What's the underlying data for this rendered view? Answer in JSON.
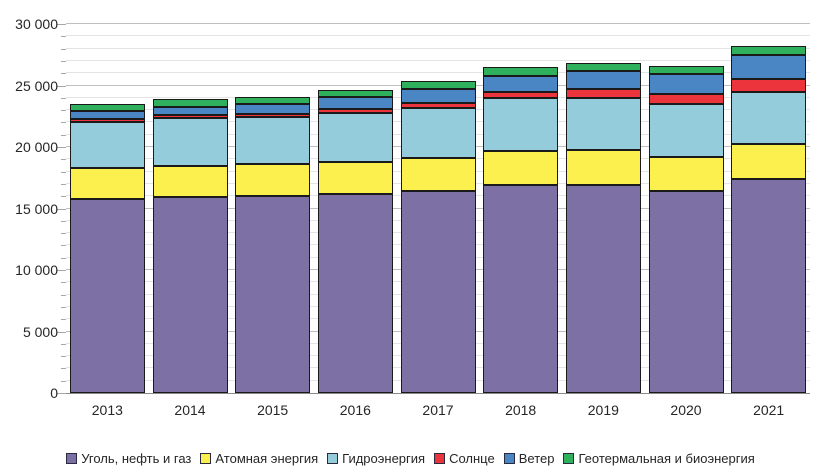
{
  "chart_data": {
    "type": "bar",
    "stacked": true,
    "title": "",
    "xlabel": "",
    "ylabel": "",
    "grid": true,
    "legend_position": "bottom",
    "ylim": [
      0,
      30000
    ],
    "y_major_step": 5000,
    "y_minor_step": 1000,
    "y_tick_labels": [
      "0",
      "5 000",
      "10 000",
      "15 000",
      "20 000",
      "25 000",
      "30 000"
    ],
    "categories": [
      "2013",
      "2014",
      "2015",
      "2016",
      "2017",
      "2018",
      "2019",
      "2020",
      "2021"
    ],
    "series": [
      {
        "name": "Уголь, нефть и газ",
        "color": "#7d70a5",
        "values": [
          15800,
          15900,
          16050,
          16150,
          16450,
          16950,
          16900,
          16450,
          17400
        ]
      },
      {
        "name": "Атомная энергия",
        "color": "#fbf04d",
        "values": [
          2500,
          2550,
          2600,
          2600,
          2650,
          2750,
          2850,
          2700,
          2850
        ]
      },
      {
        "name": "Гидроэнергия",
        "color": "#95ccdc",
        "values": [
          3700,
          3900,
          3800,
          4000,
          4050,
          4250,
          4200,
          4350,
          4250
        ]
      },
      {
        "name": "Солнце",
        "color": "#eb343c",
        "values": [
          150,
          200,
          250,
          350,
          450,
          550,
          750,
          850,
          1050
        ]
      },
      {
        "name": "Ветер",
        "color": "#4a86c3",
        "values": [
          650,
          700,
          800,
          950,
          1150,
          1300,
          1500,
          1600,
          1900
        ]
      },
      {
        "name": "Геотермальная и биоэнергия",
        "color": "#2fb05c",
        "values": [
          600,
          600,
          600,
          600,
          650,
          700,
          650,
          650,
          800
        ]
      }
    ],
    "totals": [
      23400,
      23850,
      24100,
      24650,
      25400,
      26500,
      26850,
      26600,
      28250
    ],
    "colors": {
      "segment_border": "#1a1a1a",
      "grid_minor": "#e4e4e4",
      "grid_major": "#bfbfbf",
      "axis_line": "#8a8a8a",
      "tick": "#a8a8a8",
      "text": "#262626"
    }
  }
}
